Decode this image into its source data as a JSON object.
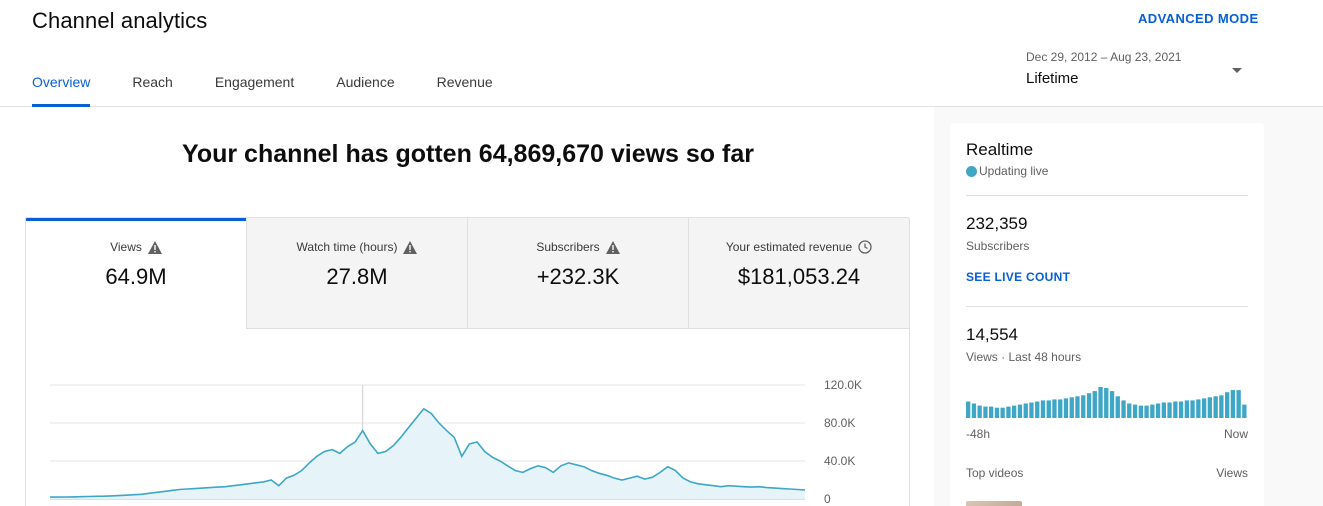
{
  "header": {
    "title": "Channel analytics",
    "advanced_mode": "ADVANCED MODE",
    "tabs": [
      {
        "label": "Overview",
        "active": true
      },
      {
        "label": "Reach",
        "active": false
      },
      {
        "label": "Engagement",
        "active": false
      },
      {
        "label": "Audience",
        "active": false
      },
      {
        "label": "Revenue",
        "active": false
      }
    ],
    "date_range": "Dec 29, 2012 – Aug 23, 2021",
    "date_label": "Lifetime"
  },
  "main": {
    "headline": "Your channel has gotten 64,869,670 views so far",
    "metrics": [
      {
        "label": "Views",
        "value": "64.9M",
        "icon": "warning-icon",
        "active": true
      },
      {
        "label": "Watch time (hours)",
        "value": "27.8M",
        "icon": "warning-icon",
        "active": false
      },
      {
        "label": "Subscribers",
        "value": "+232.3K",
        "icon": "warning-icon",
        "active": false
      },
      {
        "label": "Your estimated revenue",
        "value": "$181,053.24",
        "icon": "clock-icon",
        "active": false
      }
    ]
  },
  "chart_data": {
    "type": "area",
    "title": "",
    "xlabel": "",
    "ylabel": "",
    "ylim": [
      0,
      120000
    ],
    "y_ticks": [
      "0",
      "40.0K",
      "80.0K",
      "120.0K"
    ],
    "y_tick_values": [
      0,
      40000,
      80000,
      120000
    ],
    "grid": true,
    "color": "#3ea6c7",
    "series": [
      {
        "values": [
          2000,
          2000,
          2100,
          2200,
          2400,
          2600,
          2800,
          3000,
          3300,
          3600,
          4000,
          4500,
          5000,
          6000,
          7000,
          8000,
          9000,
          10000,
          10500,
          11000,
          11500,
          12000,
          12500,
          13000,
          14000,
          15000,
          16000,
          17000,
          18000,
          20000,
          14000,
          22000,
          25000,
          30000,
          38000,
          45000,
          50000,
          52000,
          48000,
          55000,
          60000,
          72000,
          58000,
          48000,
          50000,
          56000,
          65000,
          75000,
          85000,
          95000,
          90000,
          80000,
          72000,
          65000,
          45000,
          58000,
          60000,
          50000,
          44000,
          40000,
          35000,
          30000,
          28000,
          32000,
          35000,
          33000,
          28000,
          35000,
          38000,
          36000,
          34000,
          30000,
          27000,
          25000,
          22000,
          20000,
          22000,
          24000,
          21000,
          23000,
          28000,
          34000,
          30000,
          22000,
          18000,
          16000,
          15000,
          14000,
          13000,
          14000,
          13500,
          13000,
          12500,
          13000,
          12000,
          11500,
          11000,
          10500,
          10000,
          9500
        ]
      }
    ],
    "annotation_marker_index": 41
  },
  "realtime": {
    "title": "Realtime",
    "status": "Updating live",
    "subscribers_value": "232,359",
    "subscribers_label": "Subscribers",
    "live_count_link": "SEE LIVE COUNT",
    "views_value": "14,554",
    "views_label": "Views · Last 48 hours",
    "axis_start": "-48h",
    "axis_end": "Now",
    "top_videos_label": "Top videos",
    "views_col_label": "Views",
    "bars": [
      16,
      14,
      12,
      11,
      11,
      10,
      10,
      11,
      12,
      13,
      14,
      15,
      16,
      17,
      17,
      18,
      18,
      19,
      20,
      21,
      22,
      24,
      26,
      30,
      29,
      26,
      21,
      17,
      14,
      13,
      12,
      12,
      13,
      14,
      15,
      15,
      16,
      16,
      17,
      17,
      18,
      19,
      20,
      21,
      22,
      25,
      27,
      27,
      13
    ]
  }
}
